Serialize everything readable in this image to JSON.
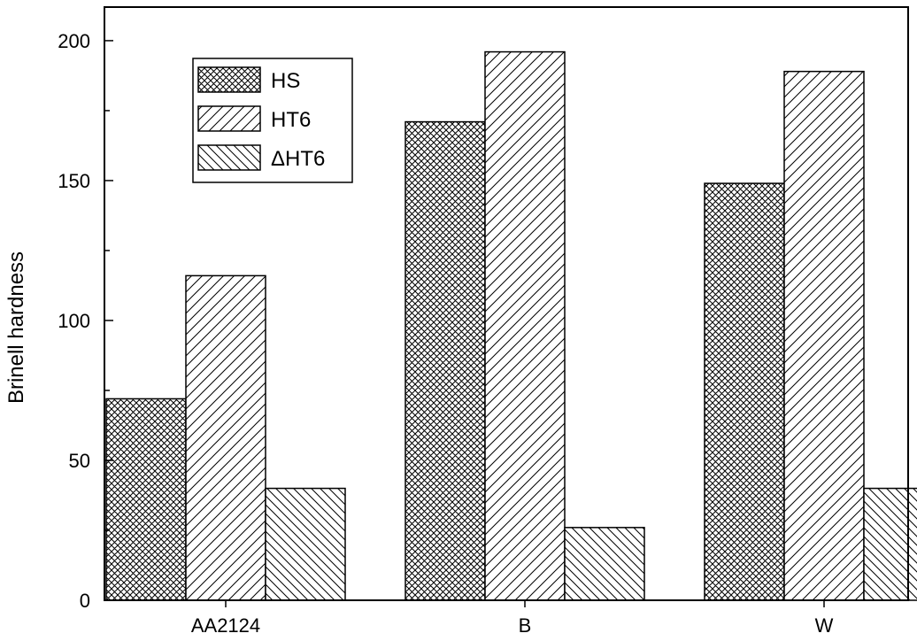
{
  "chart_data": {
    "type": "bar",
    "categories": [
      "AA2124",
      "B",
      "W"
    ],
    "series": [
      {
        "name": "HS",
        "pattern": "crosshatch",
        "values": [
          72,
          171,
          149
        ]
      },
      {
        "name": "HT6",
        "pattern": "forward-diagonal",
        "values": [
          116,
          196,
          189
        ]
      },
      {
        "name": "ΔHT6",
        "pattern": "back-diagonal",
        "values": [
          40,
          26,
          40
        ]
      }
    ],
    "title": "",
    "xlabel": "",
    "ylabel": "Brinell hardness",
    "ylim": [
      0,
      212
    ],
    "yticks": [
      0,
      50,
      100,
      150,
      200
    ],
    "yticklabels": [
      "0",
      "50",
      "100",
      "150",
      "200"
    ],
    "legend_position": "top-left",
    "grid": false
  }
}
